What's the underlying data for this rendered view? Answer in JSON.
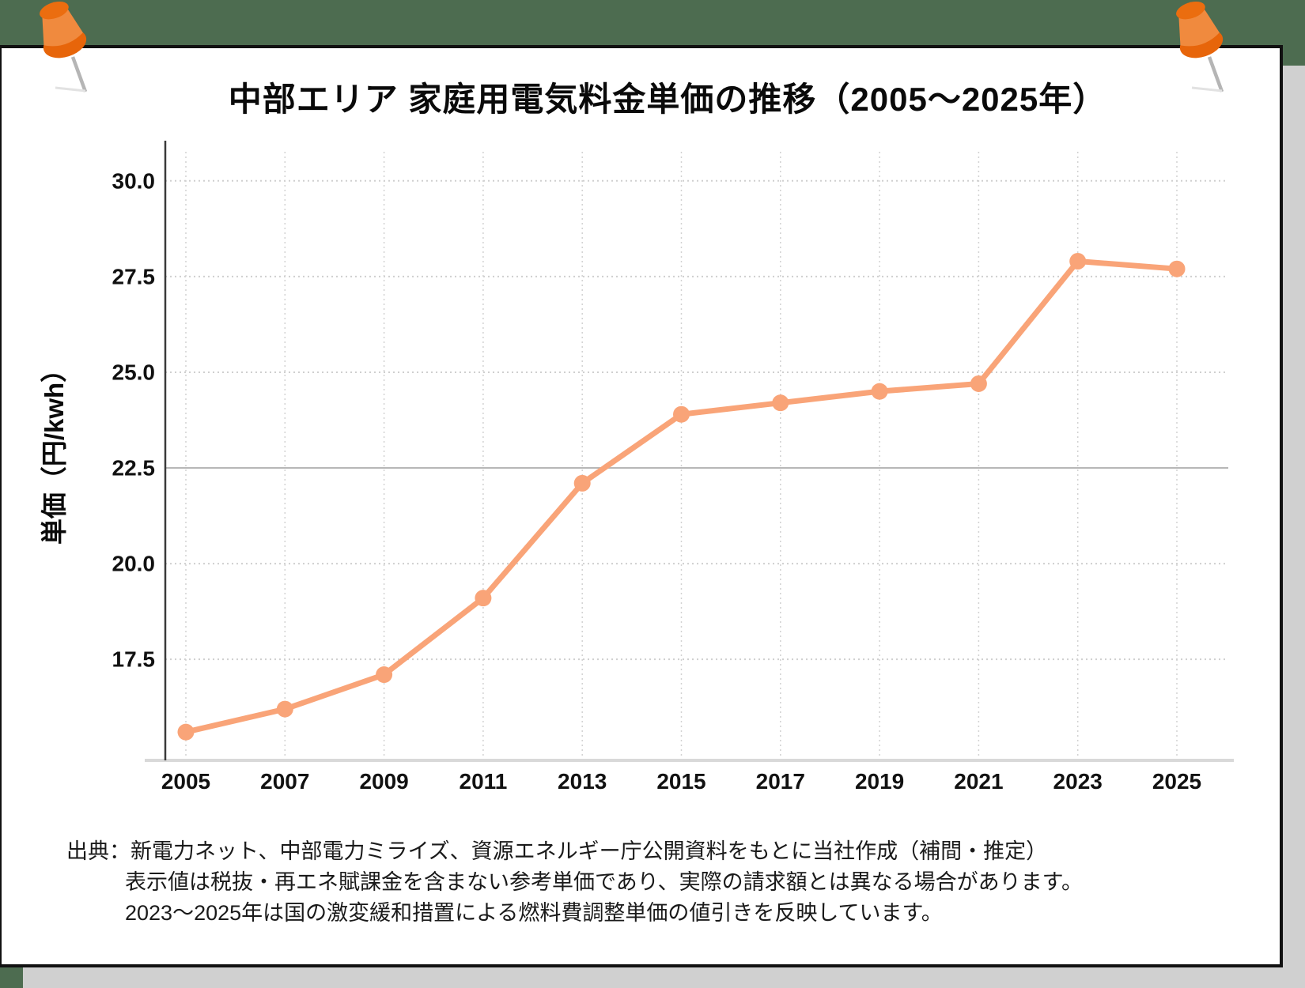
{
  "page": {
    "background_color": "#4d6c50",
    "card_shadow_color": "#d0d0d0",
    "card_border_color": "#111111"
  },
  "chart_data": {
    "type": "line",
    "title": "中部エリア 家庭用電気料金単価の推移（2005～2025年）",
    "categories": [
      "2005",
      "2007",
      "2009",
      "2011",
      "2013",
      "2015",
      "2017",
      "2019",
      "2021",
      "2023",
      "2025"
    ],
    "values": [
      15.6,
      16.2,
      17.1,
      19.1,
      22.1,
      23.9,
      24.2,
      24.5,
      24.7,
      27.9,
      27.7
    ],
    "xlabel": "",
    "ylabel": "単価（円/kwh）",
    "yticks": [
      17.5,
      20.0,
      22.5,
      25.0,
      27.5,
      30.0
    ],
    "ytick_labels": [
      "17.5",
      "20.0",
      "22.5",
      "25.0",
      "27.5",
      "30.0"
    ],
    "ylim": [
      14.86,
      30.76
    ],
    "grid": true,
    "solid_gridline_at": 22.5,
    "legend": "none",
    "line_color": "#f9a478",
    "marker": "circle",
    "marker_color": "#f9a478",
    "gridline_color": "#cfcfcf",
    "solid_gridline_color": "#b7b7b7",
    "y_axis_line_color": "#3a3a3a",
    "x_axis_line_color": "#d9d9d9"
  },
  "footer": {
    "lines": [
      "出典：新電力ネット、中部電力ミライズ、資源エネルギー庁公開資料をもとに当社作成（補間・推定）",
      "表示値は税抜・再エネ賦課金を含まない参考単価であり、実際の請求額とは異なる場合があります。",
      "2023～2025年は国の激変緩和措置による燃料費調整単価の値引きを反映しています。"
    ]
  },
  "decor": {
    "pushpin_flange_color": "#e7650a",
    "pushpin_body_color": "#f08a3e",
    "pushpin_cap_color": "#eb6d0f",
    "needle_color": "#b5b5b5",
    "needle_shadow_color": "#e2e2e2"
  }
}
